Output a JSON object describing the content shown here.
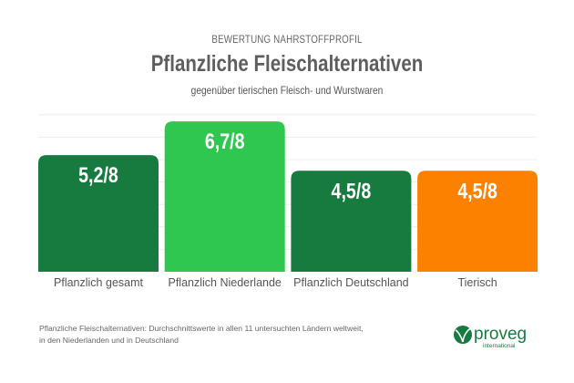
{
  "header": {
    "kicker": "BEWERTUNG NÄHRSTOFFPROFIL",
    "title": "Pflanzliche Fleischalternativen",
    "subtitle": "gegenüber tierischen Fleisch- und Wurstwaren"
  },
  "chart_data": {
    "type": "bar",
    "title": "Pflanzliche Fleischalternativen",
    "categories": [
      "Pflanzlich gesamt",
      "Pflanzlich Niederlande",
      "Pflanzlich Deutschland",
      "Tierisch"
    ],
    "values": [
      5.2,
      6.7,
      4.5,
      4.5
    ],
    "data_labels": [
      "5,2/8",
      "6,7/8",
      "4,5/8",
      "4,5/8"
    ],
    "colors": [
      "#177b40",
      "#2fc74f",
      "#177b40",
      "#fd8100"
    ],
    "ylim": [
      0,
      7
    ],
    "grid": true,
    "xlabel": "",
    "ylabel": ""
  },
  "footnote": {
    "line1": "Pflanzliche Fleischalternativen: Durchschnittswerte in allen 11 untersuchten Ländern weltweit,",
    "line2": "in den Niederlanden und in Deutschland"
  },
  "logo": {
    "text": "proveg",
    "subtext": "international",
    "color": "#177b40"
  }
}
